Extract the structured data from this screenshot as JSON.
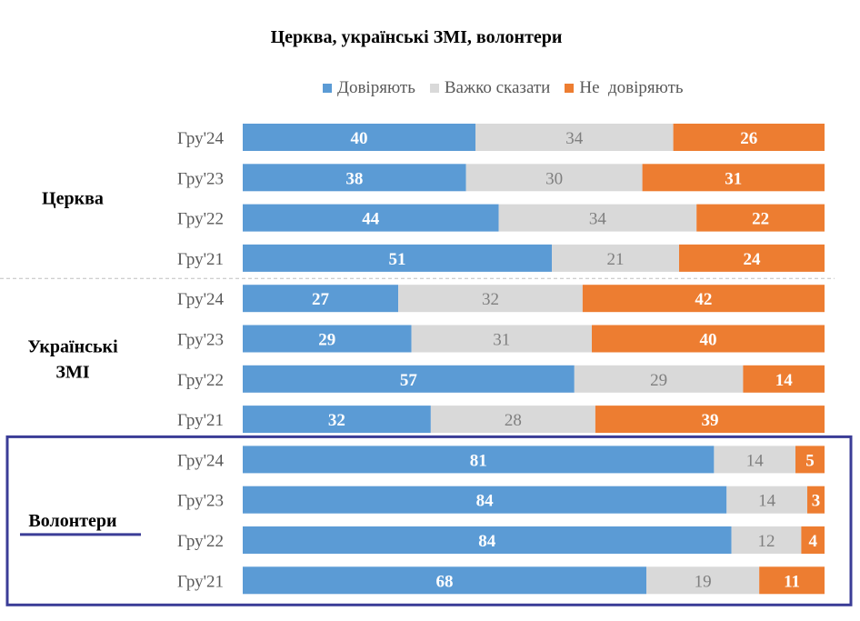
{
  "chart_data": {
    "type": "bar",
    "orientation": "horizontal",
    "stacked": "100%",
    "title": "Церква, українські ЗМІ, волонтери",
    "legend": {
      "position": "top",
      "entries": [
        "Довіряють",
        "Важко сказати",
        "Не  довіряють"
      ]
    },
    "colors": {
      "Довіряють": "#5b9bd5",
      "Важко сказати": "#d9d9d9",
      "Не  довіряють": "#ed7d31",
      "highlight_box": "#3b3d97",
      "divider": "#bfbfbf"
    },
    "series_keys": [
      "trust",
      "hard",
      "distrust"
    ],
    "groups": [
      {
        "name": "Церква",
        "name_lines": [
          "Церква"
        ],
        "rows": [
          {
            "period": "Гру'24",
            "trust": 40,
            "hard": 34,
            "distrust": 26
          },
          {
            "period": "Гру'23",
            "trust": 38,
            "hard": 30,
            "distrust": 31
          },
          {
            "period": "Гру'22",
            "trust": 44,
            "hard": 34,
            "distrust": 22
          },
          {
            "period": "Гру'21",
            "trust": 51,
            "hard": 21,
            "distrust": 24
          }
        ]
      },
      {
        "name": "Українські ЗМІ",
        "name_lines": [
          "Українські",
          "ЗМІ"
        ],
        "rows": [
          {
            "period": "Гру'24",
            "trust": 27,
            "hard": 32,
            "distrust": 42
          },
          {
            "period": "Гру'23",
            "trust": 29,
            "hard": 31,
            "distrust": 40
          },
          {
            "period": "Гру'22",
            "trust": 57,
            "hard": 29,
            "distrust": 14
          },
          {
            "period": "Гру'21",
            "trust": 32,
            "hard": 28,
            "distrust": 39
          }
        ]
      },
      {
        "name": "Волонтери",
        "name_lines": [
          "Волонтери"
        ],
        "highlighted": true,
        "rows": [
          {
            "period": "Гру'24",
            "trust": 81,
            "hard": 14,
            "distrust": 5
          },
          {
            "period": "Гру'23",
            "trust": 84,
            "hard": 14,
            "distrust": 3
          },
          {
            "period": "Гру'22",
            "trust": 84,
            "hard": 12,
            "distrust": 4
          },
          {
            "period": "Гру'21",
            "trust": 68,
            "hard": 19,
            "distrust": 11
          }
        ]
      }
    ]
  }
}
